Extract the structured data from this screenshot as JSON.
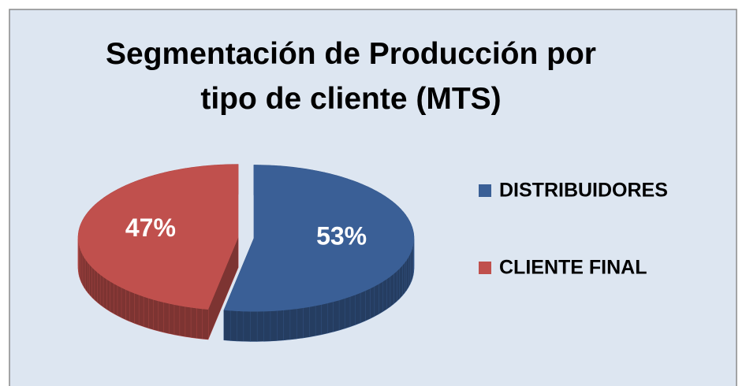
{
  "chart_data": {
    "type": "pie",
    "title": "Segmentación de Producción por tipo de cliente (MTS)",
    "categories": [
      "DISTRIBUIDORES",
      "CLIENTE FINAL"
    ],
    "values": [
      53,
      47
    ],
    "value_labels": [
      "53%",
      "47%"
    ],
    "colors": [
      "#3a5f96",
      "#c0504d"
    ],
    "legend": "right"
  }
}
